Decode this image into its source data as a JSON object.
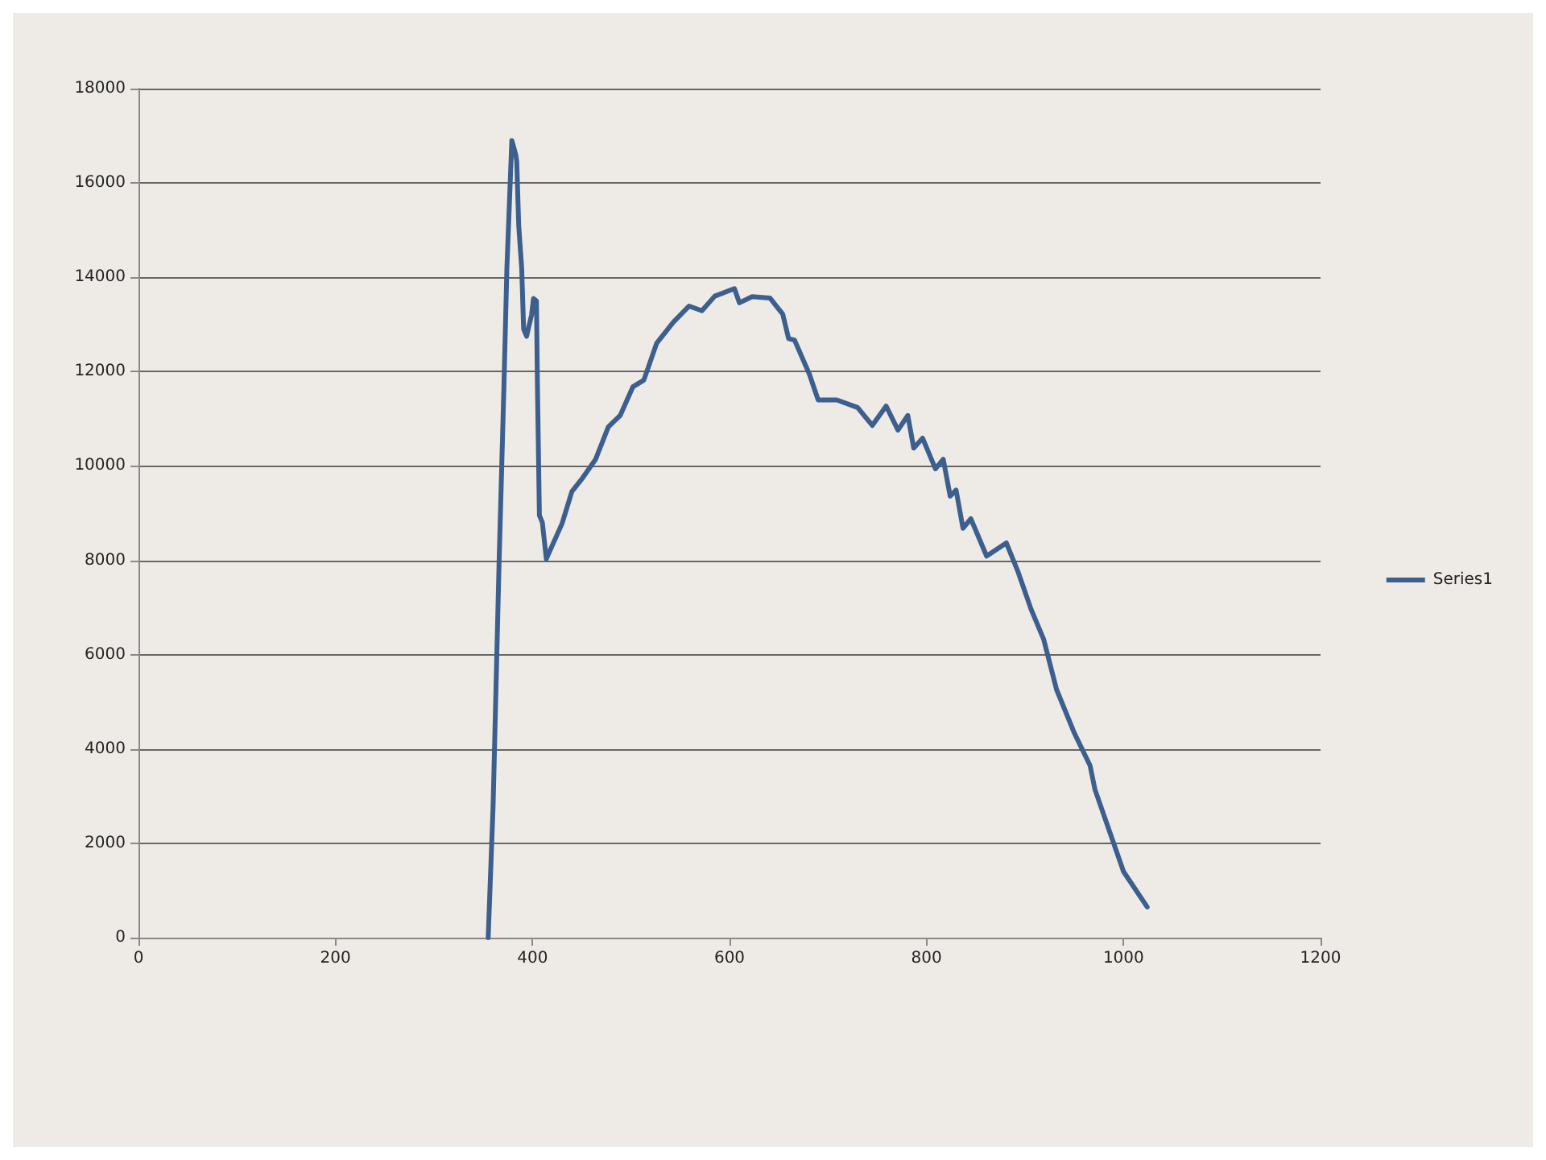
{
  "chart_data": {
    "type": "line",
    "x": [
      355,
      360,
      366,
      371,
      374,
      379,
      383,
      384,
      386,
      389,
      391,
      394,
      399,
      401,
      404,
      405,
      407,
      410,
      414,
      430,
      440,
      451,
      464,
      477,
      489,
      502,
      513,
      526,
      543,
      559,
      572,
      585,
      605,
      610,
      623,
      641,
      654,
      660,
      666,
      681,
      690,
      709,
      730,
      745,
      759,
      771,
      781,
      787,
      796,
      809,
      817,
      824,
      830,
      837,
      845,
      861,
      881,
      893,
      906,
      919,
      932,
      950,
      966,
      971,
      1000,
      1024
    ],
    "series": [
      {
        "name": "Series1",
        "color": "#3d5f8e",
        "values": [
          0,
          2800,
          7900,
          11700,
          14200,
          16900,
          16600,
          16450,
          15100,
          14200,
          12900,
          12750,
          13200,
          13550,
          13500,
          11700,
          8950,
          8800,
          8030,
          8780,
          9460,
          9750,
          10140,
          10830,
          11070,
          11680,
          11820,
          12600,
          13050,
          13390,
          13290,
          13600,
          13760,
          13460,
          13590,
          13560,
          13220,
          12700,
          12670,
          11950,
          11400,
          11400,
          11240,
          10860,
          11270,
          10760,
          11070,
          10380,
          10590,
          9940,
          10140,
          9360,
          9490,
          8680,
          8880,
          8090,
          8370,
          7750,
          6970,
          6320,
          5260,
          4340,
          3650,
          3140,
          1400,
          650
        ]
      }
    ],
    "xlim": [
      0,
      1200
    ],
    "xticks": [
      0,
      200,
      400,
      600,
      800,
      1000,
      1200
    ],
    "ylim": [
      0,
      18000
    ],
    "yticks": [
      0,
      2000,
      4000,
      6000,
      8000,
      10000,
      12000,
      14000,
      16000,
      18000
    ],
    "grid": "y",
    "legend": "right",
    "marker": "none",
    "line_style": "solid"
  }
}
